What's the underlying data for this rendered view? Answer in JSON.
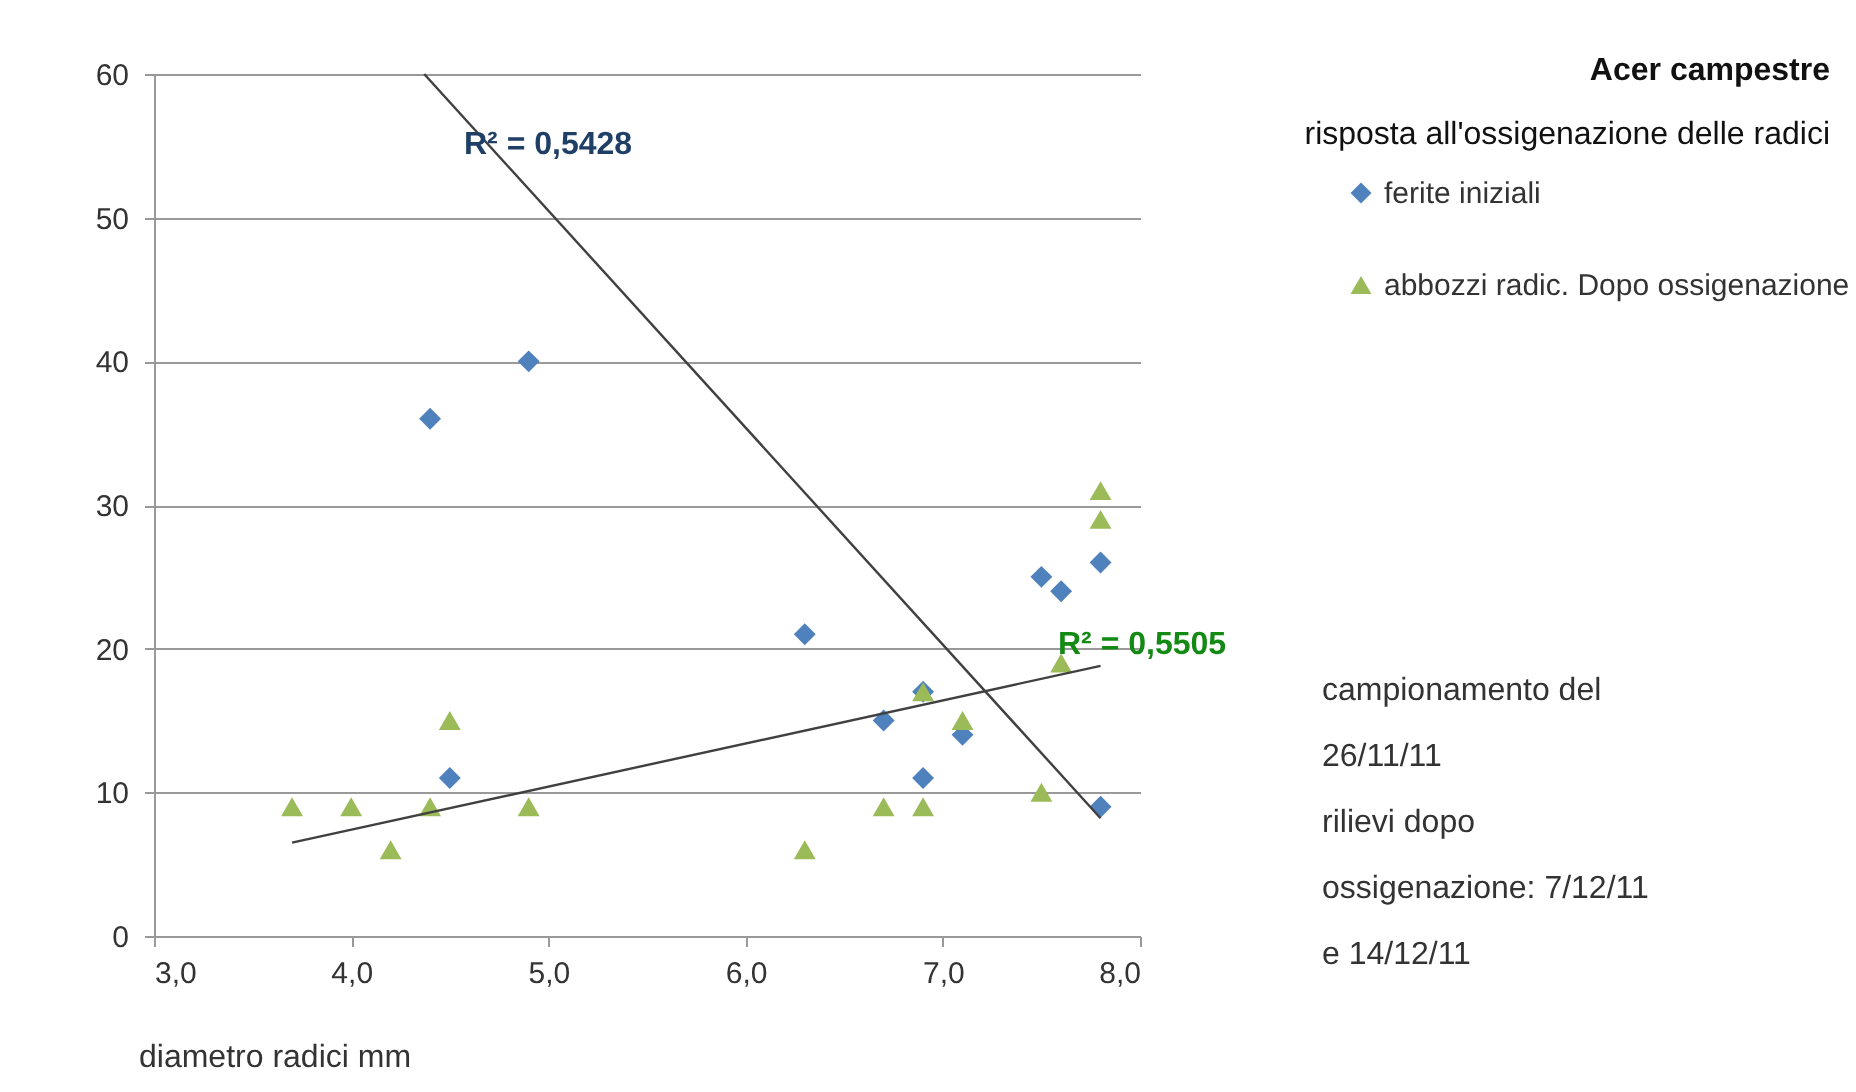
{
  "chart_data": {
    "type": "scatter",
    "title": "Acer campestre",
    "subtitle": "risposta all'ossigenazione delle radici",
    "xlabel": "diametro radici mm",
    "xlim": [
      3,
      8
    ],
    "xticks": [
      {
        "value": 3,
        "label": "3,0"
      },
      {
        "value": 4,
        "label": "4,0"
      },
      {
        "value": 5,
        "label": "5,0"
      },
      {
        "value": 6,
        "label": "6,0"
      },
      {
        "value": 7,
        "label": "7,0"
      },
      {
        "value": 8,
        "label": "8,0"
      }
    ],
    "ylim": [
      0,
      60
    ],
    "yticks": [
      0,
      10,
      20,
      30,
      40,
      50,
      60
    ],
    "grid": "y",
    "legend": "right",
    "series": [
      {
        "name": "ferite iniziali",
        "marker": "diamond",
        "color": "#4f81bd",
        "x": [
          4.4,
          4.9,
          4.5,
          6.3,
          6.7,
          6.9,
          6.9,
          7.1,
          7.5,
          7.6,
          7.8,
          7.8
        ],
        "values": [
          36,
          40,
          11,
          21,
          15,
          17,
          11,
          14,
          25,
          24,
          26,
          9
        ]
      },
      {
        "name": "abbozzi radic. Dopo ossigenazione",
        "marker": "triangle",
        "color": "#9bbb59",
        "x": [
          3.7,
          4.0,
          4.2,
          4.4,
          4.5,
          4.9,
          6.3,
          6.7,
          6.9,
          6.9,
          7.1,
          7.5,
          7.6,
          7.8,
          7.8
        ],
        "values": [
          9,
          9,
          6,
          9,
          15,
          9,
          6,
          9,
          17,
          9,
          15,
          10,
          19,
          29,
          31
        ]
      },
      {
        "type": "line",
        "color": "#404040",
        "x": [
          4.37,
          7.8
        ],
        "values": [
          60,
          8.2
        ]
      },
      {
        "type": "line",
        "color": "#404040",
        "x": [
          3.7,
          7.8
        ],
        "values": [
          6.5,
          18.8
        ]
      }
    ],
    "annotations": [
      "R² = 0,5428",
      "R² = 0,5505",
      "campionamento del 26/11/11",
      "rilievi dopo ossigenazione: 7/12/11 e 14/12/11"
    ]
  }
}
